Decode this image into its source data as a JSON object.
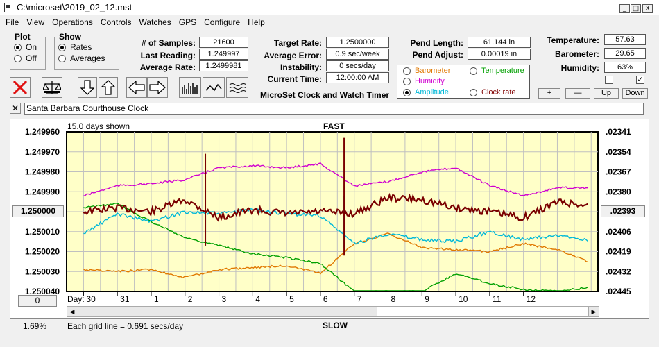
{
  "window": {
    "title": "C:\\microset\\2019_02_12.mst",
    "min": "_",
    "max": "□",
    "close": "X"
  },
  "menu": [
    "File",
    "View",
    "Operations",
    "Controls",
    "Watches",
    "GPS",
    "Configure",
    "Help"
  ],
  "plot": {
    "legend": "Plot",
    "on": "On",
    "off": "Off"
  },
  "show": {
    "legend": "Show",
    "rates": "Rates",
    "averages": "Averages"
  },
  "stats": {
    "samples_label": "# of Samples:",
    "samples": "21600",
    "last_label": "Last Reading:",
    "last": "1.249997",
    "avg_label": "Average Rate:",
    "avg": "1.2499981",
    "target_label": "Target Rate:",
    "target": "1.2500000",
    "error_label": "Average Error:",
    "error": "0.9 sec/week",
    "instab_label": "Instability:",
    "instab": "0 secs/day",
    "time_label": "Current Time:",
    "time": "12:00:00 AM",
    "plen_label": "Pend Length:",
    "plen": "61.144 in",
    "padj_label": "Pend Adjust:",
    "padj": "0.00019 in",
    "temp_label": "Temperature:",
    "temp": "57.63",
    "baro_label": "Barometer:",
    "baro": "29.65",
    "hum_label": "Humidity:",
    "hum": "63%"
  },
  "brand": "MicroSet Clock and Watch Timer",
  "series_options": [
    {
      "label": "Barometer",
      "color": "#e07800"
    },
    {
      "label": "Temperature",
      "color": "#00a000"
    },
    {
      "label": "Humidity",
      "color": "#d000d0"
    },
    {
      "label": "Clock rate",
      "color": "#800000"
    },
    {
      "label": "Amplitude",
      "color": "#00b8d8"
    }
  ],
  "adjust": {
    "plus": "+",
    "minus": "—",
    "up": "Up",
    "down": "Down",
    "check2": "✓"
  },
  "clock": {
    "x": "✕",
    "name": "Santa Barbara Courthouse Clock"
  },
  "chart": {
    "days_shown": "15.0 days shown",
    "fast": "FAST",
    "slow": "SLOW",
    "grid_note": "Each grid line = 0.691 secs/day",
    "day_label": "Day:",
    "left_button": "1.250000",
    "right_button": ".02393",
    "bottom_button": "0",
    "pct": "1.69%"
  },
  "chart_data": {
    "type": "line",
    "title": "FAST",
    "y_left_ticks": [
      "1.249960",
      "1.249970",
      "1.249980",
      "1.249990",
      "1.250000",
      "1.250010",
      "1.250020",
      "1.250030",
      "1.250040"
    ],
    "y_right_ticks": [
      ".02341",
      ".02354",
      ".02367",
      ".02380",
      ".02393",
      ".02406",
      ".02419",
      ".02432",
      ".02445"
    ],
    "x_ticks": [
      "30",
      "31",
      "1",
      "2",
      "3",
      "4",
      "5",
      "6",
      "7",
      "8",
      "9",
      "10",
      "11",
      "12"
    ],
    "x_days": [
      0,
      1,
      2,
      3,
      4,
      5,
      6,
      7,
      8,
      9,
      10,
      11,
      12,
      13,
      14,
      14.9
    ],
    "grid": true,
    "series": [
      {
        "name": "Clock rate",
        "color": "#7a0000",
        "y": [
          1.25,
          1.249998,
          1.25,
          1.249994,
          1.250003,
          1.249999,
          1.250001,
          1.25,
          1.250001,
          1.249993,
          1.249994,
          1.249998,
          1.25,
          1.250003,
          1.249995,
          1.249997
        ],
        "spikes": [
          [
            3.6,
            1.249971,
            1.250017
          ],
          [
            7.7,
            1.249963,
            1.250022
          ]
        ]
      },
      {
        "name": "Humidity",
        "color": "#d000d0",
        "y": [
          1.249992,
          1.249987,
          1.249986,
          1.249984,
          1.249978,
          1.249977,
          1.249978,
          1.249976,
          1.249987,
          1.249985,
          1.24998,
          1.249978,
          1.249987,
          1.249992,
          1.249988,
          1.249988
        ],
        "spikes": []
      },
      {
        "name": "Amplitude",
        "color": "#00b8d8",
        "y": [
          1.250011,
          1.250001,
          1.250005,
          1.25,
          1.250001,
          1.249999,
          1.250001,
          1.250002,
          1.250016,
          1.250011,
          1.250014,
          1.250015,
          1.25001,
          1.250014,
          1.250012,
          1.250014
        ],
        "spikes": [
          [
            3.6,
            1.25,
            1.250017
          ],
          [
            7.7,
            1.249992,
            1.250018
          ]
        ]
      },
      {
        "name": "Temperature",
        "color": "#00a000",
        "y": [
          1.249998,
          1.249996,
          1.250005,
          1.250013,
          1.250017,
          1.250021,
          1.250023,
          1.250026,
          1.25004,
          1.25004,
          1.25004,
          1.250031,
          1.250036,
          1.250039,
          1.25004,
          1.250038
        ],
        "spikes": []
      },
      {
        "name": "Barometer",
        "color": "#e07800",
        "y": [
          1.250029,
          1.25003,
          1.250029,
          1.250033,
          1.250029,
          1.250028,
          1.250027,
          1.250031,
          1.250016,
          1.250011,
          1.250018,
          1.250019,
          1.25002,
          1.250016,
          1.250019,
          1.250025
        ],
        "spikes": []
      }
    ],
    "ylim": [
      1.24996,
      1.25004
    ],
    "xlim": [
      -0.5,
      15.2
    ]
  }
}
